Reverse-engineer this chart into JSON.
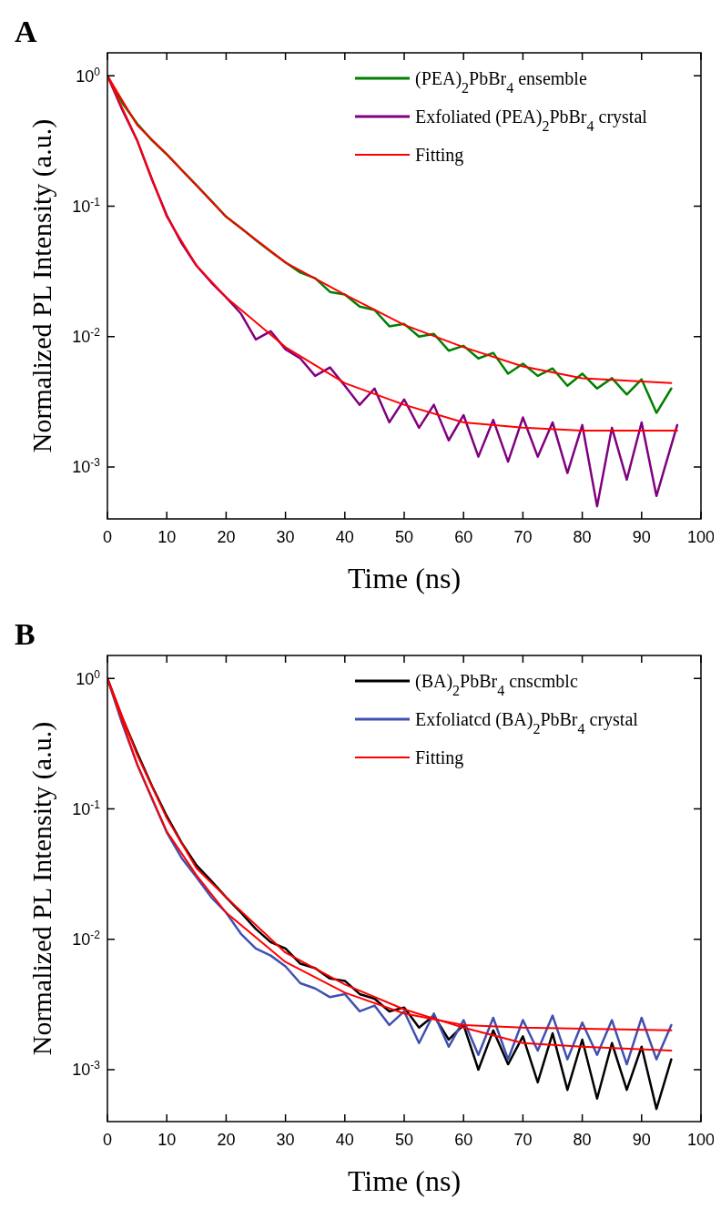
{
  "chart_data": [
    {
      "type": "line",
      "title": "A",
      "xlabel": "Time (ns)",
      "ylabel": "Normalized PL Intensity (a.u.)",
      "log": "y",
      "grid": false,
      "legend": "top right",
      "xlim": [
        0,
        100
      ],
      "xticks": [
        0,
        10,
        20,
        30,
        40,
        50,
        60,
        70,
        80,
        90,
        100
      ],
      "ylim": [
        0.0004,
        1.5
      ],
      "yticks": [
        {
          "value": 1,
          "label": "10$^{0}$"
        },
        {
          "value": 0.1,
          "label": "10$^{-1}$"
        },
        {
          "value": 0.01,
          "label": "10$^{-2}$"
        },
        {
          "value": 0.001,
          "label": "10$^{-3}$"
        }
      ],
      "series": [
        {
          "name": "(PEA)$_{2}$PbBr$_{4}$ ensemble",
          "color": "#008000",
          "x": [
            0,
            2.5,
            5,
            7.5,
            10,
            12.5,
            15,
            17.5,
            20,
            22.5,
            25,
            27.5,
            30,
            32.5,
            35,
            37.5,
            40,
            42.5,
            45,
            47.5,
            50,
            52.5,
            55,
            57.5,
            60,
            62.5,
            65,
            67.5,
            70,
            72.5,
            75,
            77.5,
            80,
            82.5,
            85,
            87.5,
            90,
            92.5,
            95
          ],
          "values": [
            1.0,
            0.62,
            0.43,
            0.32,
            0.25,
            0.19,
            0.145,
            0.11,
            0.083,
            0.068,
            0.055,
            0.045,
            0.037,
            0.031,
            0.028,
            0.022,
            0.021,
            0.017,
            0.016,
            0.012,
            0.0125,
            0.01,
            0.0105,
            0.0078,
            0.0085,
            0.0068,
            0.0075,
            0.0052,
            0.0062,
            0.005,
            0.0057,
            0.0042,
            0.0052,
            0.004,
            0.0048,
            0.0036,
            0.0047,
            0.0026,
            0.004
          ]
        },
        {
          "name": "Exfoliated (PEA)$_{2}$PbBr$_{4}$ crystal",
          "color": "#800080",
          "x": [
            0,
            2.5,
            5,
            7.5,
            10,
            12.5,
            15,
            17.5,
            20,
            22.5,
            25,
            27.5,
            30,
            32.5,
            35,
            37.5,
            40,
            42.5,
            45,
            47.5,
            50,
            52.5,
            55,
            57.5,
            60,
            62.5,
            65,
            67.5,
            70,
            72.5,
            75,
            77.5,
            80,
            82.5,
            85,
            87.5,
            90,
            92.5,
            96
          ],
          "values": [
            1.0,
            0.55,
            0.32,
            0.16,
            0.085,
            0.052,
            0.035,
            0.026,
            0.02,
            0.015,
            0.0095,
            0.011,
            0.008,
            0.0068,
            0.005,
            0.0058,
            0.0042,
            0.003,
            0.004,
            0.0022,
            0.0033,
            0.002,
            0.003,
            0.0016,
            0.0025,
            0.0012,
            0.0023,
            0.0011,
            0.0024,
            0.0012,
            0.0022,
            0.0009,
            0.0021,
            0.0005,
            0.002,
            0.0008,
            0.0022,
            0.0006,
            0.0021
          ]
        },
        {
          "name": "Fitting",
          "color": "#ff0000",
          "x": [
            0,
            5,
            10,
            20,
            30,
            40,
            50,
            60,
            70,
            80,
            95
          ],
          "values": [
            1.0,
            0.42,
            0.25,
            0.083,
            0.037,
            0.021,
            0.0123,
            0.0083,
            0.0059,
            0.0048,
            0.0044
          ]
        },
        {
          "color": "#ff0000",
          "x": [
            0,
            5,
            10,
            15,
            20,
            30,
            40,
            50,
            60,
            70,
            80,
            96
          ],
          "values": [
            1.0,
            0.32,
            0.083,
            0.035,
            0.02,
            0.0083,
            0.0044,
            0.003,
            0.0022,
            0.002,
            0.0019,
            0.0019
          ]
        }
      ]
    },
    {
      "type": "line",
      "title": "B",
      "xlabel": "Time (ns)",
      "ylabel": "Normalized PL Intensity (a.u.)",
      "log": "y",
      "grid": false,
      "legend": "top right",
      "xlim": [
        0,
        100
      ],
      "xticks": [
        0,
        10,
        20,
        30,
        40,
        50,
        60,
        70,
        80,
        90,
        100
      ],
      "ylim": [
        0.0004,
        1.5
      ],
      "yticks": [
        {
          "value": 1,
          "label": "10$^{0}$"
        },
        {
          "value": 0.1,
          "label": "10$^{-1}$"
        },
        {
          "value": 0.01,
          "label": "10$^{-2}$"
        },
        {
          "value": 0.001,
          "label": "10$^{-3}$"
        }
      ],
      "series": [
        {
          "name": "(BA)$_{2}$PbBr$_{4}$ cnscmblc",
          "color": "#000000",
          "x": [
            0,
            2.5,
            5,
            7.5,
            10,
            12.5,
            15,
            17.5,
            20,
            22.5,
            25,
            27.5,
            30,
            32.5,
            35,
            37.5,
            40,
            42.5,
            45,
            47.5,
            50,
            52.5,
            55,
            57.5,
            60,
            62.5,
            65,
            67.5,
            70,
            72.5,
            75,
            77.5,
            80,
            82.5,
            85,
            87.5,
            90,
            92.5,
            95
          ],
          "values": [
            1.0,
            0.5,
            0.27,
            0.15,
            0.088,
            0.055,
            0.037,
            0.028,
            0.021,
            0.016,
            0.012,
            0.0095,
            0.0085,
            0.0065,
            0.006,
            0.005,
            0.0048,
            0.0038,
            0.0035,
            0.0028,
            0.003,
            0.0021,
            0.0026,
            0.0017,
            0.0022,
            0.001,
            0.002,
            0.0011,
            0.0018,
            0.0008,
            0.0019,
            0.0007,
            0.0017,
            0.0006,
            0.0016,
            0.0007,
            0.0015,
            0.0005,
            0.0012
          ]
        },
        {
          "name": "Exfoliatcd (BA)$_{2}$PbBr$_{4}$ crystal",
          "color": "#4050b0",
          "x": [
            0,
            2.5,
            5,
            7.5,
            10,
            12.5,
            15,
            17.5,
            20,
            22.5,
            25,
            27.5,
            30,
            32.5,
            35,
            37.5,
            40,
            42.5,
            45,
            47.5,
            50,
            52.5,
            55,
            57.5,
            60,
            62.5,
            65,
            67.5,
            70,
            72.5,
            75,
            77.5,
            80,
            82.5,
            85,
            87.5,
            90,
            92.5,
            95
          ],
          "values": [
            1.0,
            0.45,
            0.22,
            0.12,
            0.066,
            0.042,
            0.03,
            0.021,
            0.016,
            0.011,
            0.0085,
            0.0075,
            0.0062,
            0.0046,
            0.0042,
            0.0036,
            0.0038,
            0.0028,
            0.0031,
            0.0022,
            0.0028,
            0.0016,
            0.0027,
            0.0015,
            0.0024,
            0.0013,
            0.0025,
            0.0012,
            0.0024,
            0.0014,
            0.0026,
            0.0012,
            0.0023,
            0.0013,
            0.0024,
            0.0011,
            0.0025,
            0.0012,
            0.0022
          ]
        },
        {
          "name": "Fitting",
          "color": "#ff0000",
          "x": [
            0,
            5,
            10,
            15,
            20,
            30,
            40,
            50,
            60,
            70,
            80,
            95
          ],
          "values": [
            1.0,
            0.26,
            0.085,
            0.035,
            0.021,
            0.0079,
            0.0045,
            0.0029,
            0.0021,
            0.0016,
            0.0015,
            0.0014
          ]
        },
        {
          "color": "#ff0000",
          "x": [
            0,
            5,
            10,
            15,
            20,
            30,
            40,
            50,
            60,
            70,
            95
          ],
          "values": [
            1.0,
            0.22,
            0.067,
            0.031,
            0.016,
            0.0067,
            0.0039,
            0.0027,
            0.0022,
            0.0021,
            0.002
          ]
        }
      ]
    }
  ]
}
